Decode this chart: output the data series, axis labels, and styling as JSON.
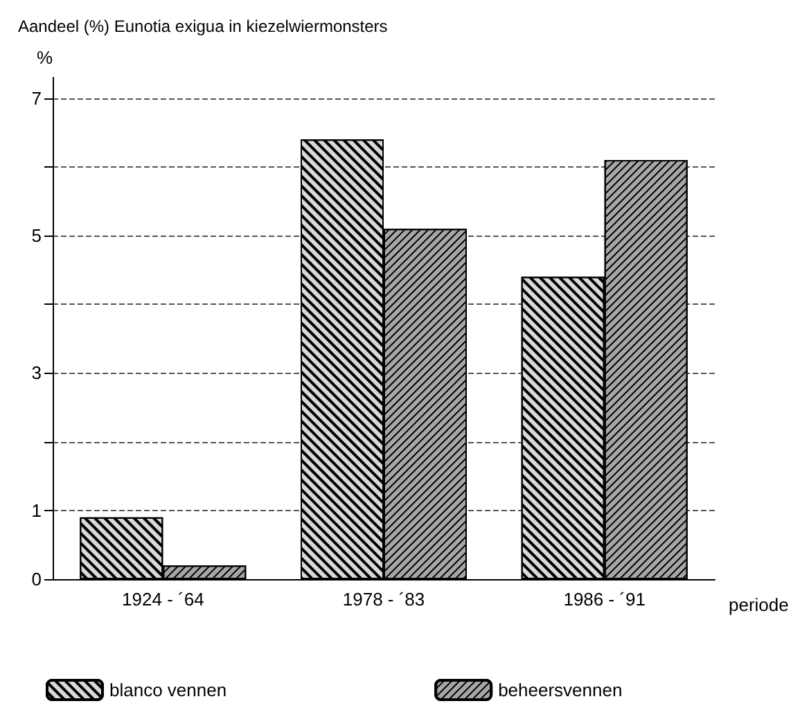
{
  "chart_data": {
    "type": "bar",
    "title": "Aandeel (%) Eunotia exigua in kiezelwiermonsters",
    "ylabel": "%",
    "xlabel": "periode",
    "categories": [
      "1924 - ´64",
      "1978 - ´83",
      "1986 - ´91"
    ],
    "series": [
      {
        "name": "blanco vennen",
        "color": "#d9d9d9",
        "values": [
          0.9,
          6.4,
          4.4
        ]
      },
      {
        "name": "beheersvennen",
        "color": "#a6a6a6",
        "values": [
          0.2,
          5.1,
          6.1
        ]
      }
    ],
    "ylim": [
      0,
      7.3
    ],
    "yticks": [
      0,
      1,
      {
        "value": 2,
        "label": null
      },
      3,
      {
        "value": 4,
        "label": null
      },
      5,
      {
        "value": 6,
        "label": null
      },
      7
    ],
    "grid": "y",
    "legend": "bottom"
  }
}
